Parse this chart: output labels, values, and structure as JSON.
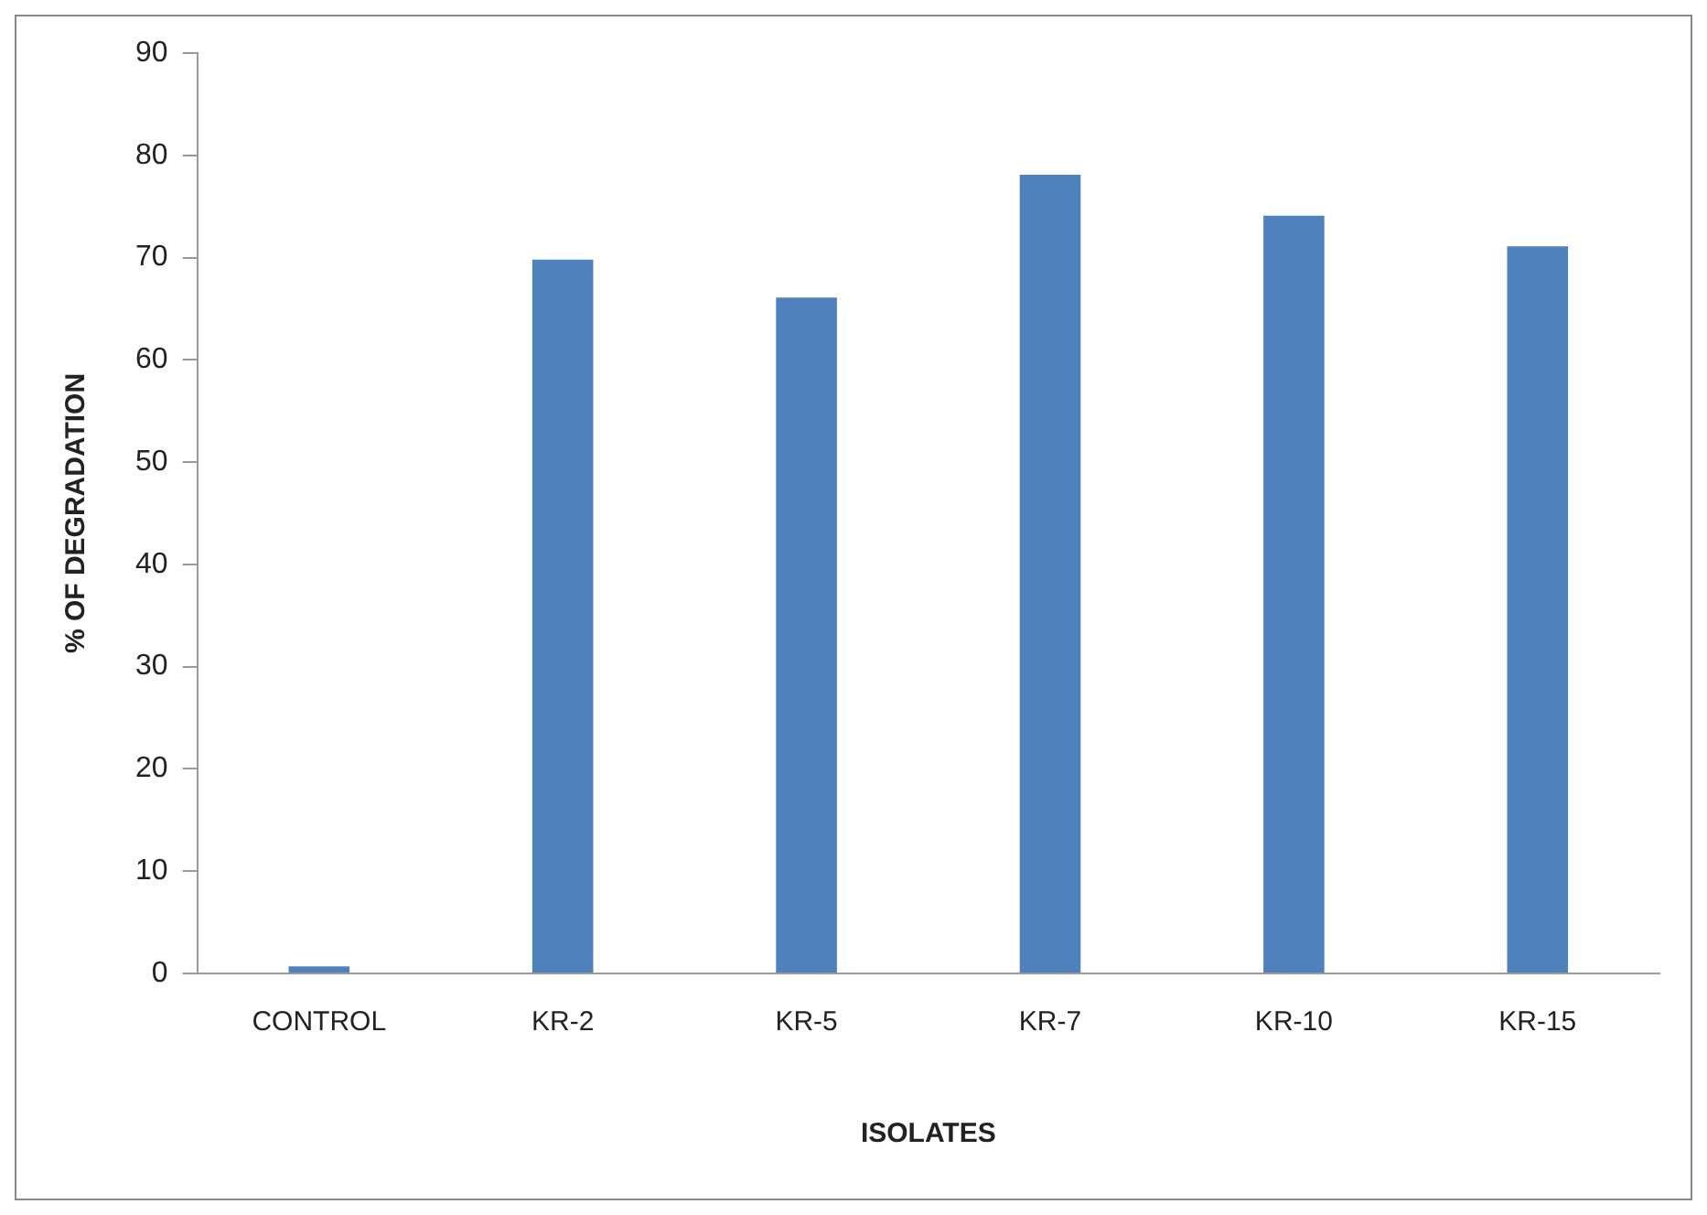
{
  "chart_data": {
    "type": "bar",
    "xlabel": "ISOLATES",
    "ylabel": "% OF DEGRADATION",
    "categories": [
      "CONTROL",
      "KR-2",
      "KR-5",
      "KR-7",
      "KR-10",
      "KR-15"
    ],
    "values": [
      0.7,
      69.8,
      66.1,
      78.1,
      74.1,
      71.1
    ],
    "color": "#4f81bd",
    "ylim": [
      0,
      90
    ],
    "yticks": [
      0,
      10,
      20,
      30,
      40,
      50,
      60,
      70,
      80,
      90
    ],
    "grid": false,
    "legend": false
  }
}
